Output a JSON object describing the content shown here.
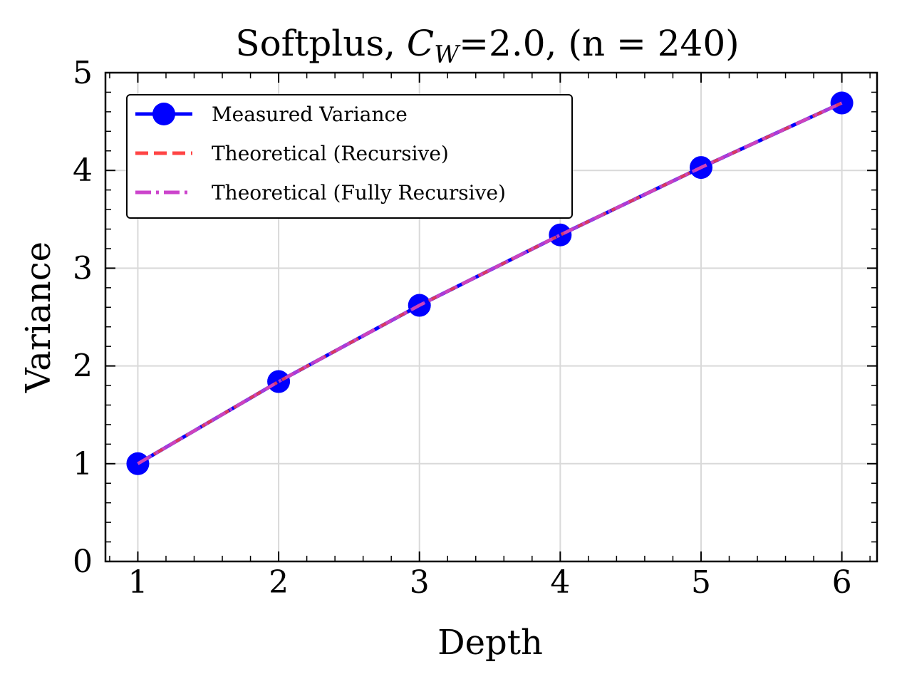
{
  "chart_data": {
    "type": "line",
    "title_prefix": "Softplus, ",
    "title_symbol": "C",
    "title_subscript": "W",
    "title_suffix": "=2.0, (n = 240)",
    "xlabel": "Depth",
    "ylabel": "Variance",
    "xlim": [
      0.77,
      6.25
    ],
    "ylim": [
      0,
      5
    ],
    "xticks": [
      1,
      2,
      3,
      4,
      5,
      6
    ],
    "yticks": [
      0,
      1,
      2,
      3,
      4,
      5
    ],
    "grid": true,
    "legend_position": "upper-left",
    "series": [
      {
        "name": "Measured Variance",
        "style": "solid-with-markers",
        "color": "#0000ff",
        "x": [
          1,
          2,
          3,
          4,
          5,
          6
        ],
        "values": [
          1.0,
          1.84,
          2.62,
          3.34,
          4.03,
          4.69
        ]
      },
      {
        "name": "Theoretical (Recursive)",
        "style": "dashed",
        "color": "#ff4444",
        "x": [
          1,
          2,
          3,
          4,
          5,
          6
        ],
        "values": [
          1.0,
          1.84,
          2.62,
          3.34,
          4.03,
          4.69
        ]
      },
      {
        "name": "Theoretical (Fully Recursive)",
        "style": "dashdot",
        "color": "#cc44cc",
        "x": [
          1,
          2,
          3,
          4,
          5,
          6
        ],
        "values": [
          1.0,
          1.84,
          2.62,
          3.34,
          4.03,
          4.69
        ]
      }
    ]
  }
}
